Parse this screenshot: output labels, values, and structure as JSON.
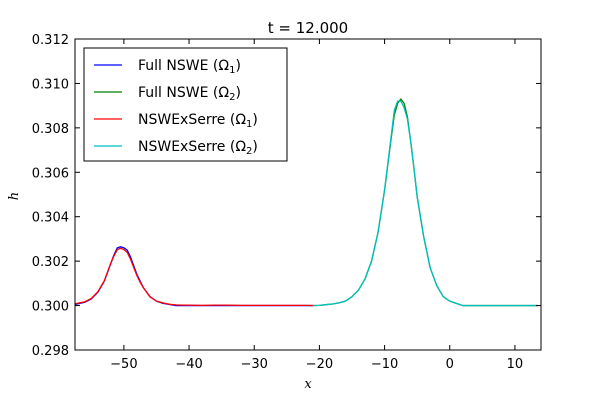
{
  "chart_data": {
    "type": "line",
    "title": "t = 12.000",
    "xlabel": "x",
    "ylabel": "h",
    "xlim": [
      -57.5,
      14
    ],
    "ylim": [
      0.298,
      0.312
    ],
    "x_ticks": [
      -50,
      -40,
      -30,
      -20,
      -10,
      0,
      10
    ],
    "x_tick_labels": [
      "−50",
      "−40",
      "−30",
      "−20",
      "−10",
      "0",
      "10"
    ],
    "y_ticks": [
      0.298,
      0.3,
      0.302,
      0.304,
      0.306,
      0.308,
      0.31,
      0.312
    ],
    "y_tick_labels": [
      "0.298",
      "0.300",
      "0.302",
      "0.304",
      "0.306",
      "0.308",
      "0.310",
      "0.312"
    ],
    "grid": false,
    "legend_position": "top-left",
    "series": [
      {
        "name": "Full NSWE (Ω",
        "sub": "1",
        "color": "#0000ff",
        "x": [
          -57.5,
          -56,
          -55,
          -54,
          -53,
          -52,
          -51.5,
          -51,
          -50.5,
          -50,
          -49.5,
          -49,
          -48.5,
          -48,
          -47.5,
          -47,
          -46,
          -45,
          -44,
          -43,
          -42,
          -41,
          -40,
          -38,
          -36,
          -34,
          -32,
          -30,
          -28,
          -26,
          -24,
          -22,
          -21
        ],
        "y": [
          0.30005,
          0.30015,
          0.3003,
          0.3006,
          0.3011,
          0.3019,
          0.3023,
          0.3026,
          0.30265,
          0.3026,
          0.3025,
          0.3022,
          0.3018,
          0.3014,
          0.3011,
          0.3008,
          0.3004,
          0.3002,
          0.3001,
          0.30005,
          0.3,
          0.3,
          0.3,
          0.3,
          0.3,
          0.3,
          0.3,
          0.3,
          0.3,
          0.3,
          0.3,
          0.3,
          0.3
        ]
      },
      {
        "name": "Full NSWE (Ω",
        "sub": "2",
        "color": "#008000",
        "x": [
          -21,
          -20,
          -19,
          -18,
          -17,
          -16,
          -15,
          -14,
          -13,
          -12,
          -11,
          -10,
          -9,
          -8.5,
          -8,
          -7.5,
          -7,
          -6.5,
          -6,
          -5.5,
          -5,
          -4,
          -3,
          -2,
          -1,
          0,
          1,
          2,
          4,
          6,
          8,
          10,
          12,
          13.5
        ],
        "y": [
          0.3,
          0.30001,
          0.30004,
          0.30007,
          0.30012,
          0.3002,
          0.3004,
          0.3007,
          0.3012,
          0.302,
          0.3033,
          0.3052,
          0.3075,
          0.3086,
          0.3091,
          0.3093,
          0.3091,
          0.3085,
          0.3074,
          0.3062,
          0.3049,
          0.3031,
          0.3017,
          0.3009,
          0.3004,
          0.3002,
          0.3001,
          0.3,
          0.3,
          0.3,
          0.3,
          0.3,
          0.3,
          0.3
        ]
      },
      {
        "name": "NSWExSerre (Ω",
        "sub": "1",
        "color": "#ff0000",
        "x": [
          -57.5,
          -56,
          -55,
          -54,
          -53,
          -52,
          -51.5,
          -51,
          -50.5,
          -50,
          -49.5,
          -49,
          -48.5,
          -48,
          -47.5,
          -47,
          -46,
          -45,
          -44,
          -43,
          -42,
          -41,
          -40,
          -38,
          -36,
          -34,
          -32,
          -30,
          -28,
          -26,
          -24,
          -22,
          -21
        ],
        "y": [
          0.30008,
          0.30017,
          0.30032,
          0.30062,
          0.30112,
          0.30192,
          0.30225,
          0.30252,
          0.30258,
          0.30252,
          0.3024,
          0.3021,
          0.30172,
          0.30135,
          0.30105,
          0.3008,
          0.3004,
          0.3002,
          0.30012,
          0.30006,
          0.30003,
          0.30002,
          0.30002,
          0.30001,
          0.30002,
          0.30002,
          0.30001,
          0.30001,
          0.30001,
          0.30001,
          0.30001,
          0.30001,
          0.3
        ]
      },
      {
        "name": "NSWExSerre (Ω",
        "sub": "2",
        "color": "#00bfbf",
        "x": [
          -21,
          -20,
          -19,
          -18,
          -17,
          -16,
          -15,
          -14,
          -13,
          -12,
          -11,
          -10,
          -9,
          -8.5,
          -8,
          -7.5,
          -7,
          -6.5,
          -6,
          -5.5,
          -5,
          -4,
          -3,
          -2,
          -1,
          0,
          1,
          2,
          4,
          6,
          8,
          10,
          12,
          13.5
        ],
        "y": [
          0.3,
          0.30001,
          0.30004,
          0.30007,
          0.30012,
          0.3002,
          0.3004,
          0.3007,
          0.3012,
          0.302,
          0.3033,
          0.3052,
          0.3076,
          0.3088,
          0.3092,
          0.3092,
          0.3089,
          0.3084,
          0.3074,
          0.3062,
          0.3049,
          0.3031,
          0.3017,
          0.3009,
          0.3004,
          0.3002,
          0.3001,
          0.3,
          0.3,
          0.3,
          0.3,
          0.3,
          0.3,
          0.3
        ]
      }
    ]
  }
}
